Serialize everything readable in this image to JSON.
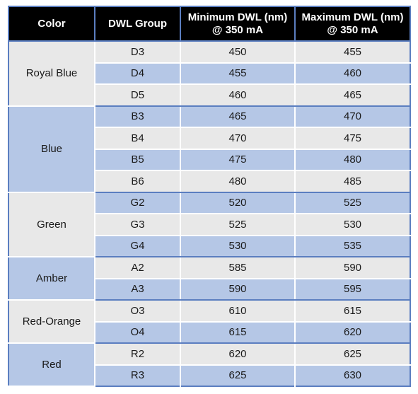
{
  "header": {
    "color": "Color",
    "dwl_group": "DWL Group",
    "min_dwl": "Minimum DWL (nm) @ 350 mA",
    "max_dwl": "Maximum DWL (nm) @ 350 mA"
  },
  "groups": [
    {
      "color": "Royal Blue",
      "rows": [
        {
          "group": "D3",
          "min": "450",
          "max": "455"
        },
        {
          "group": "D4",
          "min": "455",
          "max": "460"
        },
        {
          "group": "D5",
          "min": "460",
          "max": "465"
        }
      ]
    },
    {
      "color": "Blue",
      "rows": [
        {
          "group": "B3",
          "min": "465",
          "max": "470"
        },
        {
          "group": "B4",
          "min": "470",
          "max": "475"
        },
        {
          "group": "B5",
          "min": "475",
          "max": "480"
        },
        {
          "group": "B6",
          "min": "480",
          "max": "485"
        }
      ]
    },
    {
      "color": "Green",
      "rows": [
        {
          "group": "G2",
          "min": "520",
          "max": "525"
        },
        {
          "group": "G3",
          "min": "525",
          "max": "530"
        },
        {
          "group": "G4",
          "min": "530",
          "max": "535"
        }
      ]
    },
    {
      "color": "Amber",
      "rows": [
        {
          "group": "A2",
          "min": "585",
          "max": "590"
        },
        {
          "group": "A3",
          "min": "590",
          "max": "595"
        }
      ]
    },
    {
      "color": "Red-Orange",
      "rows": [
        {
          "group": "O3",
          "min": "610",
          "max": "615"
        },
        {
          "group": "O4",
          "min": "615",
          "max": "620"
        }
      ]
    },
    {
      "color": "Red",
      "rows": [
        {
          "group": "R2",
          "min": "620",
          "max": "625"
        },
        {
          "group": "R3",
          "min": "625",
          "max": "630"
        }
      ]
    }
  ],
  "colors": {
    "header_bg": "#000000",
    "header_text": "#ffffff",
    "row_light": "#e8e8e8",
    "row_blue": "#b5c7e6",
    "border": "#5b7ec0"
  }
}
